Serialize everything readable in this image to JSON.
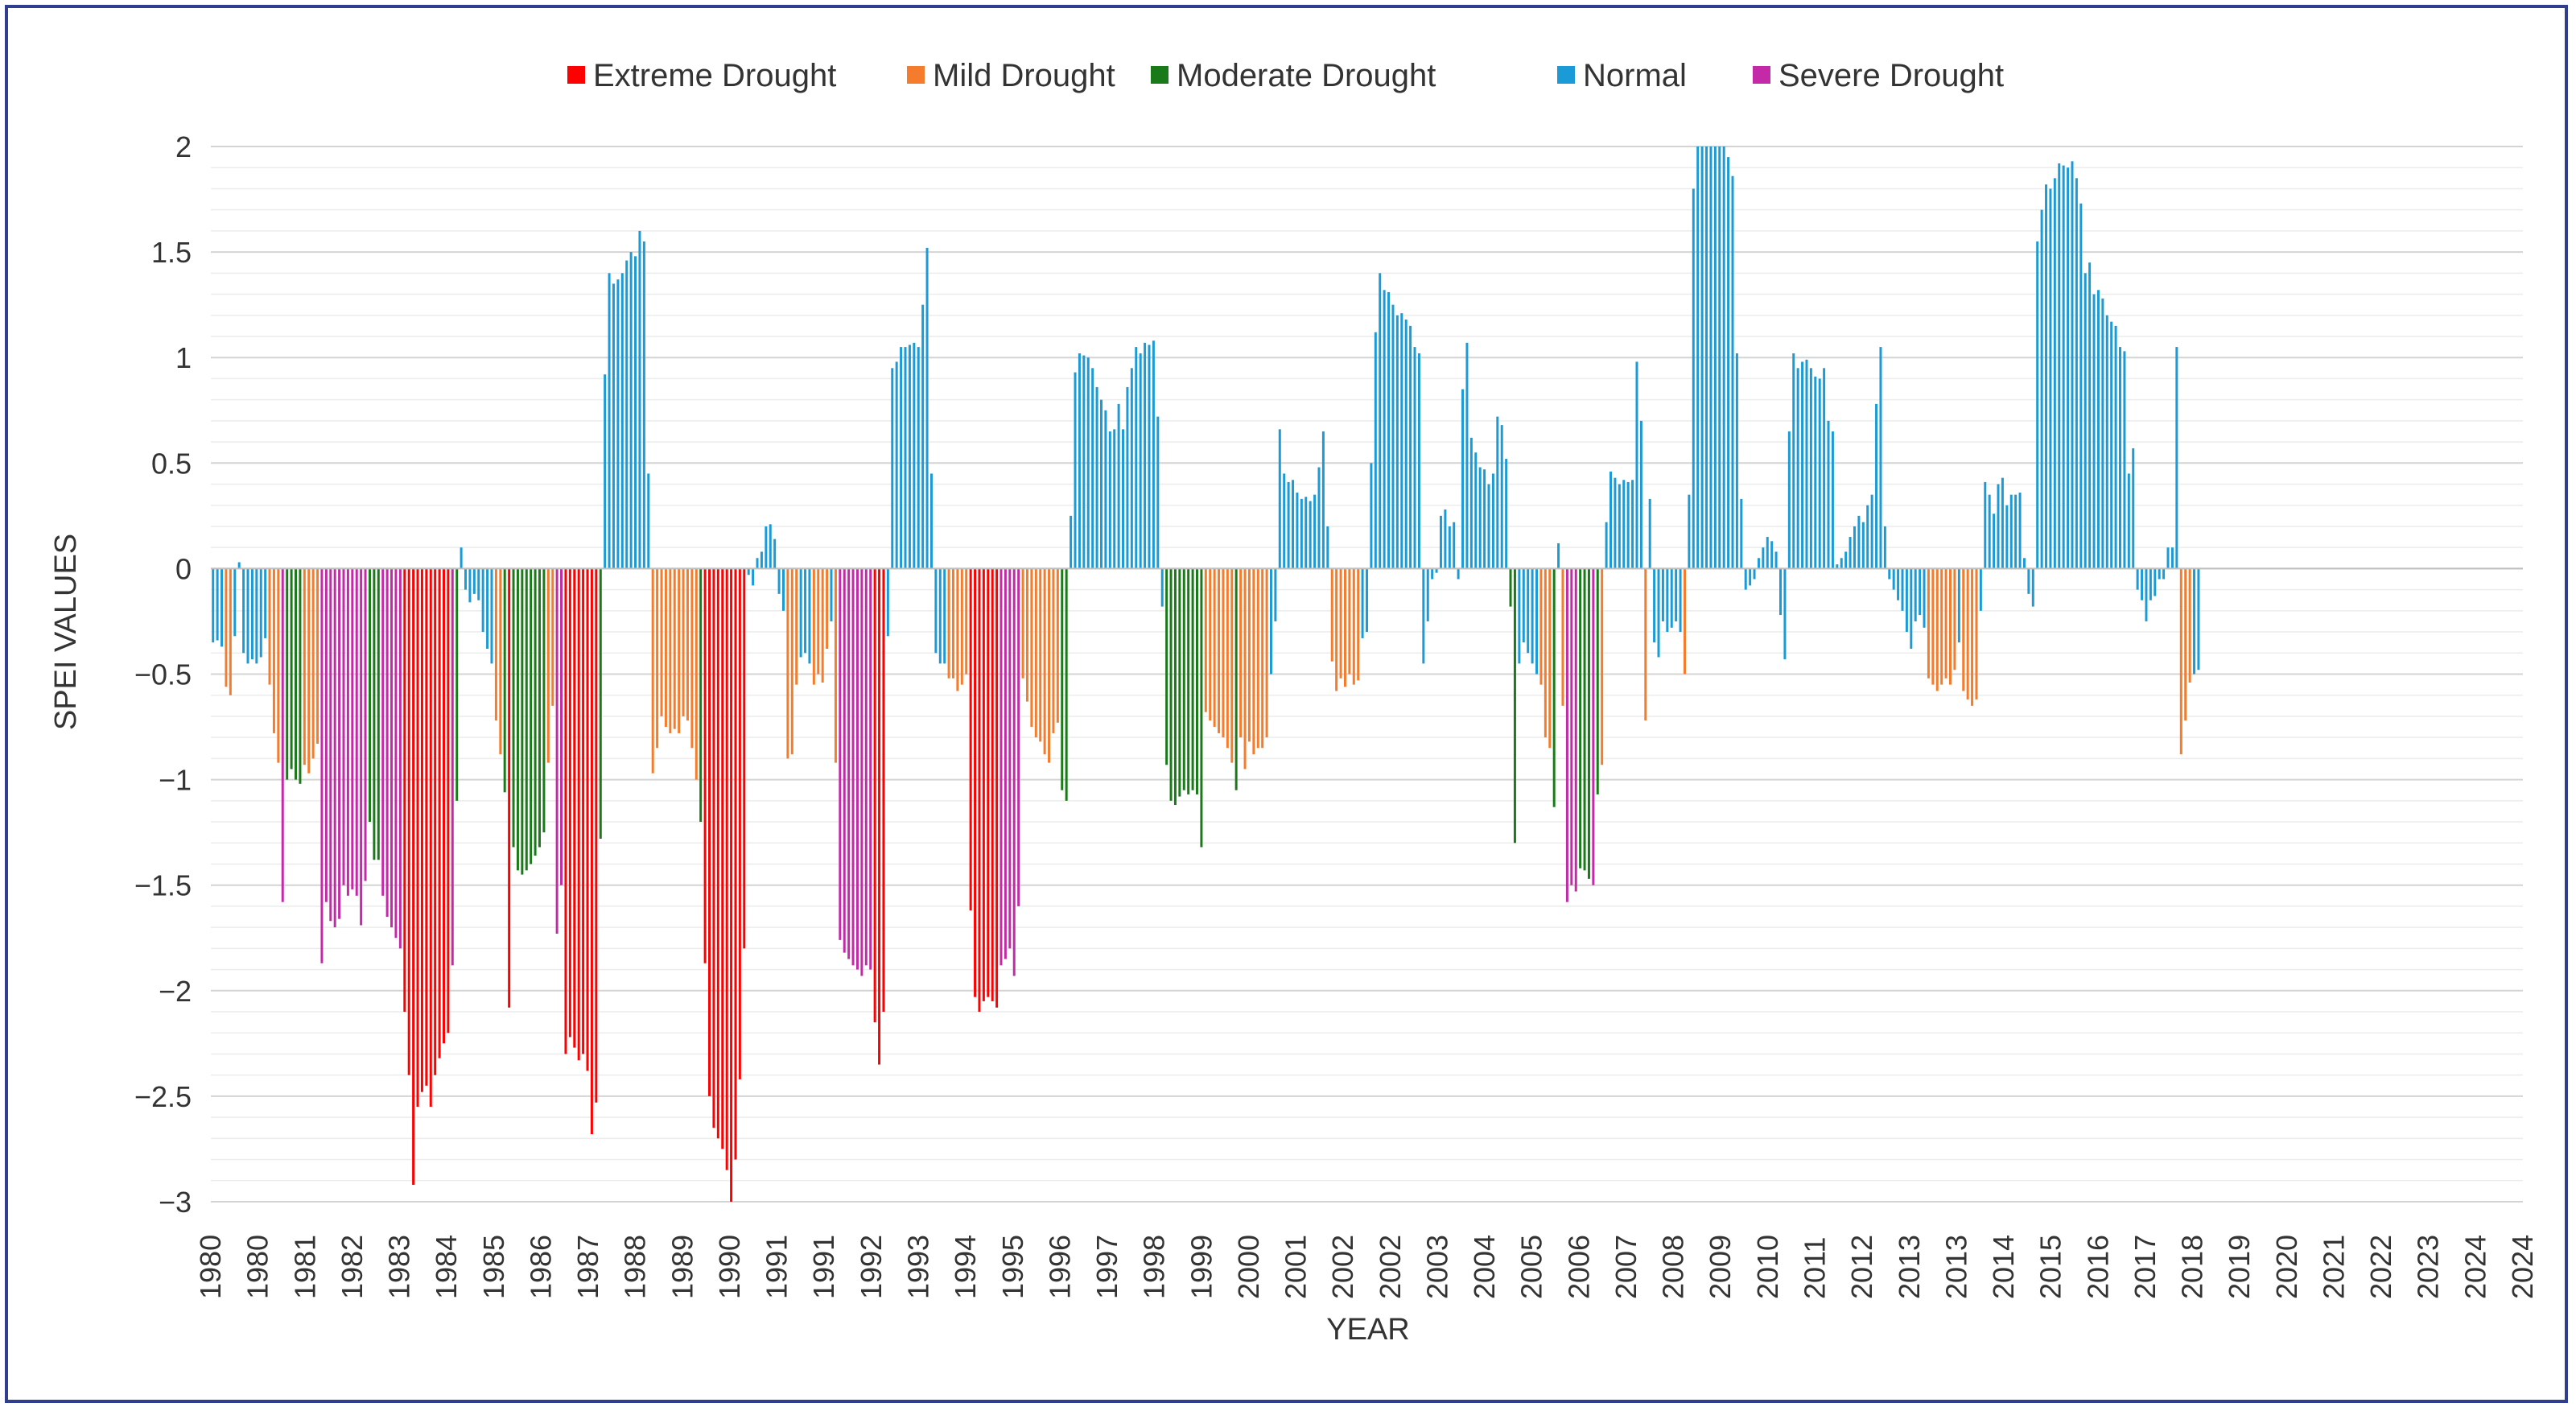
{
  "chart_data": {
    "type": "bar",
    "title": "",
    "xlabel": "YEAR",
    "ylabel": "SPEI VALUES",
    "ylim": [
      -3,
      2
    ],
    "yticks": [
      2,
      1.5,
      1,
      0.5,
      0,
      -0.5,
      -1,
      -1.5,
      -2,
      -2.5,
      -3
    ],
    "ytick_labels": [
      "2",
      "1.5",
      "1",
      "0.5",
      "0",
      "−0.5",
      "−1",
      "−1.5",
      "−2",
      "−2.5",
      "−3"
    ],
    "xtick_labels": [
      "1980",
      "1980",
      "1981",
      "1982",
      "1983",
      "1984",
      "1985",
      "1986",
      "1987",
      "1988",
      "1989",
      "1990",
      "1991",
      "1991",
      "1992",
      "1993",
      "1994",
      "1995",
      "1996",
      "1997",
      "1998",
      "1999",
      "2000",
      "2001",
      "2002",
      "2002",
      "2003",
      "2004",
      "2005",
      "2006",
      "2007",
      "2008",
      "2009",
      "2010",
      "2011",
      "2012",
      "2013",
      "2013",
      "2014",
      "2015",
      "2016",
      "2017",
      "2018",
      "2019",
      "2020",
      "2021",
      "2022",
      "2023",
      "2024",
      "2024"
    ],
    "legend": [
      {
        "key": "extreme",
        "label": "Extreme Drought",
        "color": "#ff0000"
      },
      {
        "key": "mild",
        "label": "Mild Drought",
        "color": "#f47c2c"
      },
      {
        "key": "moderate",
        "label": "Moderate Drought",
        "color": "#1a7a1a"
      },
      {
        "key": "normal",
        "label": "Normal",
        "color": "#1a9bd7"
      },
      {
        "key": "severe",
        "label": "Severe Drought",
        "color": "#c42aa8"
      }
    ],
    "monthly_segments": [
      {
        "start": 1980.0,
        "category": "normal",
        "values": [
          -0.35,
          -0.34,
          -0.37
        ]
      },
      {
        "start": 1980.25,
        "category": "mild",
        "values": [
          -0.56,
          -0.6
        ]
      },
      {
        "start": 1980.417,
        "category": "normal",
        "values": [
          -0.32,
          0.03,
          -0.4,
          -0.45,
          -0.43,
          -0.45,
          -0.42,
          -0.33
        ]
      },
      {
        "start": 1981.083,
        "category": "mild",
        "values": [
          -0.55,
          -0.78,
          -0.92
        ]
      },
      {
        "start": 1981.333,
        "category": "severe",
        "values": [
          -1.58
        ]
      },
      {
        "start": 1981.417,
        "category": "moderate",
        "values": [
          -1.0,
          -0.95,
          -1.0,
          -1.02
        ]
      },
      {
        "start": 1981.75,
        "category": "mild",
        "values": [
          -0.93,
          -0.97,
          -0.9,
          -0.83
        ]
      },
      {
        "start": 1982.083,
        "category": "severe",
        "values": [
          -1.87,
          -1.58,
          -1.67,
          -1.7,
          -1.66,
          -1.5,
          -1.55,
          -1.52,
          -1.55,
          -1.69,
          -1.48
        ]
      },
      {
        "start": 1983.0,
        "category": "moderate",
        "values": [
          -1.2,
          -1.38,
          -1.38
        ]
      },
      {
        "start": 1983.25,
        "category": "severe",
        "values": [
          -1.55,
          -1.65,
          -1.7,
          -1.75,
          -1.8
        ]
      },
      {
        "start": 1983.667,
        "category": "extreme",
        "values": [
          -2.1,
          -2.4,
          -2.92,
          -2.55,
          -2.48,
          -2.45,
          -2.55,
          -2.4,
          -2.32,
          -2.25,
          -2.2
        ]
      },
      {
        "start": 1984.583,
        "category": "severe",
        "values": [
          -1.88
        ]
      },
      {
        "start": 1984.667,
        "category": "moderate",
        "values": [
          -1.1
        ]
      },
      {
        "start": 1984.75,
        "category": "normal",
        "values": [
          0.1,
          -0.1,
          -0.16,
          -0.12,
          -0.15,
          -0.3,
          -0.38,
          -0.45
        ]
      },
      {
        "start": 1985.417,
        "category": "mild",
        "values": [
          -0.72,
          -0.88
        ]
      },
      {
        "start": 1985.583,
        "category": "moderate",
        "values": [
          -1.06
        ]
      },
      {
        "start": 1985.667,
        "category": "extreme",
        "values": [
          -2.08
        ]
      },
      {
        "start": 1985.75,
        "category": "moderate",
        "values": [
          -1.32,
          -1.43,
          -1.45,
          -1.43,
          -1.4,
          -1.36,
          -1.32,
          -1.25
        ]
      },
      {
        "start": 1986.417,
        "category": "mild",
        "values": [
          -0.92,
          -0.65
        ]
      },
      {
        "start": 1986.583,
        "category": "severe",
        "values": [
          -1.73,
          -1.5
        ]
      },
      {
        "start": 1986.75,
        "category": "extreme",
        "values": [
          -2.3,
          -2.22,
          -2.27,
          -2.33,
          -2.3,
          -2.38,
          -2.68,
          -2.53
        ]
      },
      {
        "start": 1987.417,
        "category": "moderate",
        "values": [
          -1.28
        ]
      },
      {
        "start": 1987.5,
        "category": "normal",
        "values": [
          0.92,
          1.4,
          1.35,
          1.37,
          1.4,
          1.46,
          1.5,
          1.48,
          1.6,
          1.55,
          0.45
        ]
      },
      {
        "start": 1988.417,
        "category": "mild",
        "values": [
          -0.97,
          -0.85,
          -0.7,
          -0.75,
          -0.78,
          -0.76,
          -0.78,
          -0.7,
          -0.72,
          -0.85,
          -1.0
        ]
      },
      {
        "start": 1989.333,
        "category": "moderate",
        "values": [
          -1.2
        ]
      },
      {
        "start": 1989.417,
        "category": "extreme",
        "values": [
          -1.87,
          -2.5,
          -2.65,
          -2.7,
          -2.75,
          -2.85,
          -3.0,
          -2.8
        ]
      },
      {
        "start": 1990.083,
        "category": "extreme",
        "values": [
          -2.42,
          -1.8
        ]
      },
      {
        "start": 1990.25,
        "category": "normal",
        "values": [
          -0.03,
          -0.08,
          0.05,
          0.08,
          0.2,
          0.21,
          0.14,
          -0.12,
          -0.2
        ]
      },
      {
        "start": 1991.0,
        "category": "mild",
        "values": [
          -0.9,
          -0.88,
          -0.55
        ]
      },
      {
        "start": 1991.25,
        "category": "normal",
        "values": [
          -0.42,
          -0.4,
          -0.45
        ]
      },
      {
        "start": 1991.5,
        "category": "mild",
        "values": [
          -0.55,
          -0.5,
          -0.54,
          -0.38
        ]
      },
      {
        "start": 1991.833,
        "category": "normal",
        "values": [
          -0.25
        ]
      },
      {
        "start": 1991.917,
        "category": "mild",
        "values": [
          -0.92
        ]
      },
      {
        "start": 1992.0,
        "category": "severe",
        "values": [
          -1.76,
          -1.82,
          -1.85,
          -1.88,
          -1.9,
          -1.93,
          -1.88,
          -1.9
        ]
      },
      {
        "start": 1992.667,
        "category": "extreme",
        "values": [
          -2.15,
          -2.35,
          -2.1
        ]
      },
      {
        "start": 1992.917,
        "category": "normal",
        "values": [
          -0.32,
          0.95,
          0.98,
          1.05,
          1.05,
          1.06,
          1.07,
          1.05,
          1.25,
          1.52,
          0.45,
          -0.4,
          -0.45,
          -0.45
        ]
      },
      {
        "start": 1994.083,
        "category": "mild",
        "values": [
          -0.52,
          -0.52,
          -0.58,
          -0.55,
          -0.5
        ]
      },
      {
        "start": 1994.5,
        "category": "extreme",
        "values": [
          -1.62,
          -2.03,
          -2.1,
          -2.05,
          -2.03,
          -2.05,
          -2.08
        ]
      },
      {
        "start": 1995.083,
        "category": "severe",
        "values": [
          -1.88,
          -1.85,
          -1.8,
          -1.93,
          -1.6
        ]
      },
      {
        "start": 1995.5,
        "category": "mild",
        "values": [
          -0.52,
          -0.63,
          -0.75,
          -0.8,
          -0.82,
          -0.88,
          -0.92,
          -0.78,
          -0.73
        ]
      },
      {
        "start": 1996.25,
        "category": "moderate",
        "values": [
          -1.05,
          -1.1
        ]
      },
      {
        "start": 1996.417,
        "category": "normal",
        "values": [
          0.25,
          0.93,
          1.02,
          1.01,
          1.0,
          0.95,
          0.86,
          0.8,
          0.75,
          0.65,
          0.66,
          0.78,
          0.66,
          0.86,
          0.95,
          1.05,
          1.02,
          1.07,
          1.06,
          1.08,
          0.72,
          -0.18
        ]
      },
      {
        "start": 1998.25,
        "category": "moderate",
        "values": [
          -0.93,
          -1.1,
          -1.12,
          -1.08,
          -1.05,
          -1.07,
          -1.05,
          -1.07
        ]
      },
      {
        "start": 1998.917,
        "category": "moderate",
        "values": [
          -1.32
        ]
      },
      {
        "start": 1999.0,
        "category": "mild",
        "values": [
          -0.68,
          -0.72,
          -0.75,
          -0.78,
          -0.8,
          -0.85,
          -0.92
        ]
      },
      {
        "start": 1999.583,
        "category": "moderate",
        "values": [
          -1.05
        ]
      },
      {
        "start": 1999.667,
        "category": "mild",
        "values": [
          -0.8,
          -0.95,
          -0.82,
          -0.88,
          -0.85,
          -0.85,
          -0.8
        ]
      },
      {
        "start": 2000.25,
        "category": "normal",
        "values": [
          -0.5,
          -0.25,
          0.66,
          0.45,
          0.41,
          0.42,
          0.36,
          0.33,
          0.34,
          0.32,
          0.35,
          0.48,
          0.65,
          0.2
        ]
      },
      {
        "start": 2001.417,
        "category": "mild",
        "values": [
          -0.44,
          -0.58,
          -0.52,
          -0.56,
          -0.5,
          -0.55,
          -0.53
        ]
      },
      {
        "start": 2002.0,
        "category": "normal",
        "values": [
          -0.33,
          -0.3,
          0.5,
          1.12,
          1.4,
          1.32,
          1.31,
          1.25,
          1.2,
          1.21,
          1.18,
          1.15,
          1.05,
          1.02,
          -0.45,
          -0.25,
          -0.05,
          -0.02
        ]
      },
      {
        "start": 2003.5,
        "category": "normal",
        "values": [
          0.25,
          0.28,
          0.2,
          0.22,
          -0.05,
          0.85,
          1.07,
          0.62,
          0.55,
          0.48,
          0.47,
          0.4,
          0.45,
          0.72,
          0.68,
          0.52
        ]
      },
      {
        "start": 2004.833,
        "category": "moderate",
        "values": [
          -0.18,
          -1.3
        ]
      },
      {
        "start": 2005.0,
        "category": "normal",
        "values": [
          -0.45,
          -0.35,
          -0.4,
          -0.45,
          -0.5
        ]
      },
      {
        "start": 2005.417,
        "category": "mild",
        "values": [
          -0.55,
          -0.8,
          -0.85
        ]
      },
      {
        "start": 2005.667,
        "category": "moderate",
        "values": [
          -1.13
        ]
      },
      {
        "start": 2005.75,
        "category": "normal",
        "values": [
          0.12
        ]
      },
      {
        "start": 2005.833,
        "category": "mild",
        "values": [
          -0.65
        ]
      },
      {
        "start": 2005.917,
        "category": "severe",
        "values": [
          -1.58,
          -1.5,
          -1.53
        ]
      },
      {
        "start": 2006.167,
        "category": "moderate",
        "values": [
          -1.42,
          -1.43,
          -1.47
        ]
      },
      {
        "start": 2006.417,
        "category": "severe",
        "values": [
          -1.5
        ]
      },
      {
        "start": 2006.5,
        "category": "moderate",
        "values": [
          -1.07
        ]
      },
      {
        "start": 2006.583,
        "category": "mild",
        "values": [
          -0.93
        ]
      },
      {
        "start": 2006.667,
        "category": "normal",
        "values": [
          0.22,
          0.46,
          0.43,
          0.4,
          0.42,
          0.41,
          0.42,
          0.98,
          0.7
        ]
      },
      {
        "start": 2007.417,
        "category": "mild",
        "values": [
          -0.72
        ]
      },
      {
        "start": 2007.5,
        "category": "normal",
        "values": [
          0.33,
          -0.35,
          -0.42,
          -0.25,
          -0.3,
          -0.28,
          -0.25,
          -0.3
        ]
      },
      {
        "start": 2008.167,
        "category": "mild",
        "values": [
          -0.5
        ]
      },
      {
        "start": 2008.25,
        "category": "normal",
        "values": [
          0.35,
          1.8,
          2.0,
          2.0,
          2.0,
          2.0,
          2.0,
          2.0,
          2.0,
          1.95,
          1.86,
          1.02,
          0.33,
          -0.1,
          -0.08,
          -0.05,
          0.05,
          0.1,
          0.15,
          0.13,
          0.08,
          -0.22,
          -0.43,
          0.65,
          1.02,
          0.95,
          0.98,
          0.99,
          0.95,
          0.91,
          0.9,
          0.95,
          0.7,
          0.65,
          0.02,
          0.05,
          0.08,
          0.15,
          0.2,
          0.25,
          0.22,
          0.3,
          0.35,
          0.78,
          1.05,
          0.2,
          -0.05,
          -0.1,
          -0.15,
          -0.2,
          -0.3,
          -0.38
        ]
      },
      {
        "start": 2012.583,
        "category": "normal",
        "values": [
          -0.25,
          -0.22,
          -0.28
        ]
      },
      {
        "start": 2012.833,
        "category": "mild",
        "values": [
          -0.52,
          -0.55,
          -0.58,
          -0.55,
          -0.52,
          -0.55,
          -0.48
        ]
      },
      {
        "start": 2013.417,
        "category": "normal",
        "values": [
          -0.35
        ]
      },
      {
        "start": 2013.5,
        "category": "mild",
        "values": [
          -0.58,
          -0.62,
          -0.65,
          -0.62
        ]
      },
      {
        "start": 2013.833,
        "category": "normal",
        "values": [
          -0.2,
          0.41,
          0.35,
          0.26,
          0.4,
          0.43,
          0.3,
          0.35,
          0.35,
          0.36,
          0.05,
          -0.12,
          -0.18,
          1.55,
          1.7,
          1.82,
          1.8,
          1.85,
          1.92,
          1.91,
          1.9,
          1.93,
          1.85,
          1.73,
          1.4,
          1.45,
          1.3,
          1.32,
          1.28,
          1.2,
          1.17,
          1.15,
          1.05,
          1.03,
          0.45,
          0.57,
          -0.1,
          -0.15,
          -0.25,
          -0.15,
          -0.13,
          -0.05,
          -0.05,
          0.1,
          0.1,
          1.05
        ]
      },
      {
        "start": 2017.667,
        "category": "mild",
        "values": [
          -0.88,
          -0.72,
          -0.54
        ]
      },
      {
        "start": 2017.917,
        "category": "normal",
        "values": [
          -0.5,
          -0.48
        ]
      }
    ]
  }
}
